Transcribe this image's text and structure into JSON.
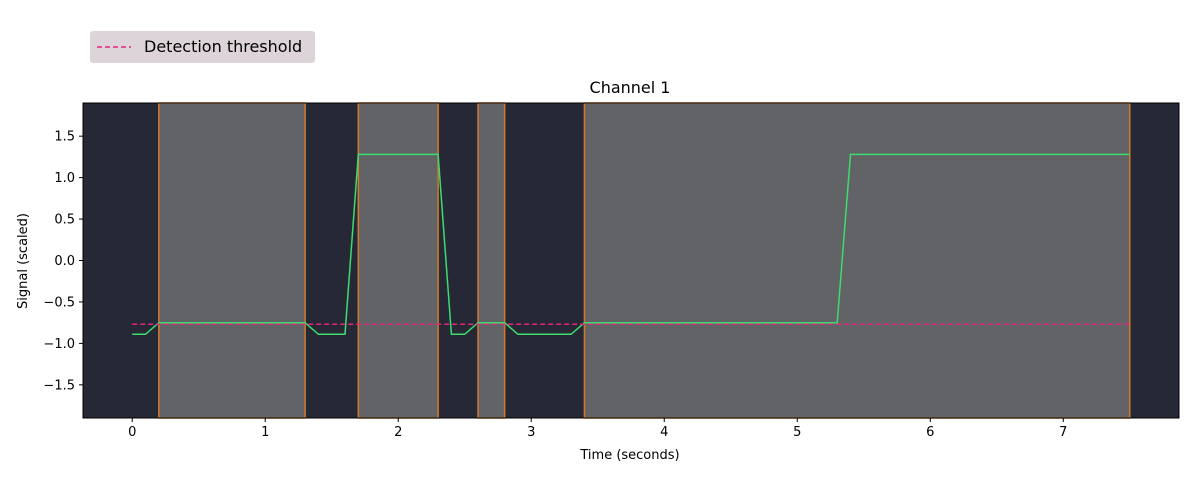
{
  "chart_data": {
    "type": "line",
    "title": "Channel 1",
    "xlabel": "Time (seconds)",
    "ylabel": "Signal (scaled)",
    "xlim": [
      -0.37,
      7.87
    ],
    "ylim": [
      -1.9,
      1.9
    ],
    "x_ticks": [
      0,
      1,
      2,
      3,
      4,
      5,
      6,
      7
    ],
    "x_tick_labels": [
      "0",
      "1",
      "2",
      "3",
      "4",
      "5",
      "6",
      "7"
    ],
    "y_ticks": [
      1.5,
      1.0,
      0.5,
      0.0,
      -0.5,
      -1.0,
      -1.5
    ],
    "y_tick_labels": [
      "1.5",
      "1.0",
      "0.5",
      "0.0",
      "−0.5",
      "−1.0",
      "−1.5"
    ],
    "grid": false,
    "legend_position": "top-left, above plot",
    "colors": {
      "plot_background": "#262935",
      "span_fill": "#626367",
      "span_edge": "#d07a2a",
      "signal_line": "#3ddc6f",
      "threshold_line": "#e0287a",
      "legend_background": "#dcd4d8"
    },
    "highlight_spans": [
      [
        0.2,
        1.3
      ],
      [
        1.7,
        2.3
      ],
      [
        2.6,
        2.8
      ],
      [
        3.4,
        7.5
      ]
    ],
    "series": [
      {
        "name": "",
        "style": "solid",
        "x": [
          0.0,
          0.1,
          0.2,
          1.3,
          1.4,
          1.6,
          1.7,
          2.3,
          2.4,
          2.5,
          2.6,
          2.8,
          2.9,
          3.3,
          3.4,
          5.3,
          5.4,
          7.5
        ],
        "y": [
          -0.89,
          -0.89,
          -0.75,
          -0.75,
          -0.89,
          -0.89,
          1.28,
          1.28,
          -0.89,
          -0.89,
          -0.75,
          -0.75,
          -0.89,
          -0.89,
          -0.75,
          -0.75,
          1.28,
          1.28
        ]
      },
      {
        "name": "Detection threshold",
        "style": "dashed",
        "x": [
          0.0,
          7.5
        ],
        "y": [
          -0.77,
          -0.77
        ]
      }
    ]
  }
}
